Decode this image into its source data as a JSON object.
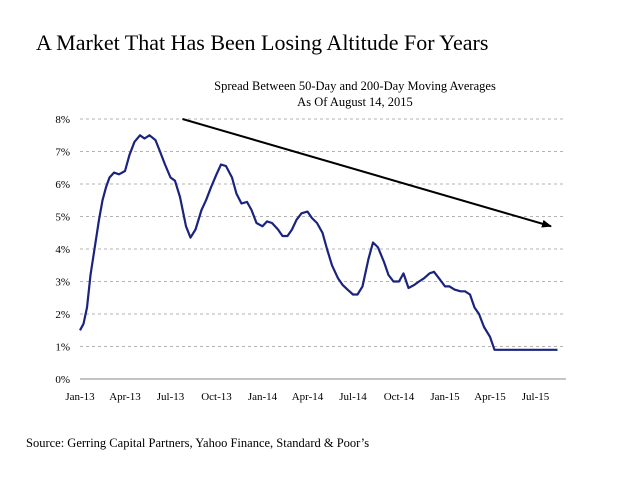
{
  "headline": "A Market That Has Been Losing Altitude For Years",
  "source": "Source: Gerring Capital Partners, Yahoo Finance, Standard & Poor’s",
  "chart_data": {
    "type": "line",
    "title": "Spread Between 50-Day and 200-Day Moving Averages",
    "subtitle": "As Of August 14, 2015",
    "xlabel": "",
    "ylabel": "",
    "ylim": [
      0,
      8
    ],
    "y_ticks": [
      "0%",
      "1%",
      "2%",
      "3%",
      "4%",
      "5%",
      "6%",
      "7%",
      "8%"
    ],
    "x_ticks": [
      "Jan-13",
      "Apr-13",
      "Jul-13",
      "Oct-13",
      "Jan-14",
      "Apr-14",
      "Jul-14",
      "Oct-14",
      "Jan-15",
      "Apr-15",
      "Jul-15"
    ],
    "xlim": [
      "2013-01-01",
      "2015-08-31"
    ],
    "grid": "horizontal dashed",
    "line_color": "#1a237e",
    "arrow_color": "#000000",
    "trend_arrow": {
      "from": {
        "x": "2013-07-25",
        "y": 8.0
      },
      "to": {
        "x": "2015-08-01",
        "y": 4.7
      }
    },
    "series": [
      {
        "x": [
          "2013-01-01",
          "2013-01-08",
          "2013-01-15",
          "2013-01-22",
          "2013-02-01",
          "2013-02-08",
          "2013-02-15",
          "2013-02-22",
          "2013-03-01",
          "2013-03-10",
          "2013-03-20",
          "2013-04-01",
          "2013-04-10",
          "2013-04-20",
          "2013-05-01",
          "2013-05-10",
          "2013-05-20",
          "2013-06-01",
          "2013-06-10",
          "2013-06-20",
          "2013-07-01",
          "2013-07-10",
          "2013-07-20",
          "2013-08-01",
          "2013-08-10",
          "2013-08-20",
          "2013-09-01",
          "2013-09-10",
          "2013-09-20",
          "2013-10-01",
          "2013-10-10",
          "2013-10-20",
          "2013-11-01",
          "2013-11-10",
          "2013-11-20",
          "2013-12-01",
          "2013-12-10",
          "2013-12-20",
          "2014-01-01",
          "2014-01-10",
          "2014-01-20",
          "2014-02-01",
          "2014-02-10",
          "2014-02-20",
          "2014-03-01",
          "2014-03-10",
          "2014-03-20",
          "2014-04-01",
          "2014-04-10",
          "2014-04-20",
          "2014-05-01",
          "2014-05-10",
          "2014-05-20",
          "2014-06-01",
          "2014-06-10",
          "2014-06-20",
          "2014-07-01",
          "2014-07-10",
          "2014-07-20",
          "2014-08-01",
          "2014-08-10",
          "2014-08-20",
          "2014-09-01",
          "2014-09-10",
          "2014-09-20",
          "2014-10-01",
          "2014-10-10",
          "2014-10-20",
          "2014-11-01",
          "2014-11-10",
          "2014-11-20",
          "2014-12-01",
          "2014-12-10",
          "2014-12-20",
          "2015-01-01",
          "2015-01-10",
          "2015-01-20",
          "2015-02-01",
          "2015-02-10",
          "2015-02-20",
          "2015-03-01",
          "2015-03-10",
          "2015-03-20",
          "2015-04-01",
          "2015-04-10",
          "2015-04-20",
          "2015-05-01",
          "2015-05-10",
          "2015-05-20",
          "2015-06-01",
          "2015-06-10",
          "2015-06-20",
          "2015-07-01",
          "2015-07-10",
          "2015-07-20",
          "2015-08-01",
          "2015-08-10",
          "2015-08-14"
        ],
        "y": [
          1.5,
          1.7,
          2.2,
          3.2,
          4.2,
          4.9,
          5.5,
          5.9,
          6.2,
          6.35,
          6.3,
          6.4,
          6.9,
          7.3,
          7.5,
          7.4,
          7.5,
          7.35,
          7.0,
          6.6,
          6.2,
          6.1,
          5.6,
          4.7,
          4.35,
          4.6,
          5.2,
          5.5,
          5.9,
          6.3,
          6.6,
          6.55,
          6.2,
          5.7,
          5.4,
          5.45,
          5.2,
          4.8,
          4.7,
          4.85,
          4.8,
          4.6,
          4.4,
          4.4,
          4.6,
          4.9,
          5.1,
          5.15,
          4.95,
          4.8,
          4.5,
          4.0,
          3.5,
          3.1,
          2.9,
          2.75,
          2.6,
          2.6,
          2.85,
          3.7,
          4.2,
          4.05,
          3.6,
          3.2,
          3.0,
          3.0,
          3.25,
          2.8,
          2.9,
          3.0,
          3.1,
          3.25,
          3.3,
          3.1,
          2.85,
          2.85,
          2.75,
          2.7,
          2.7,
          2.6,
          2.2,
          2.0,
          1.6,
          1.3,
          0.9,
          0.9,
          0.9,
          0.9,
          0.9,
          0.9,
          0.9,
          0.9,
          0.9,
          0.9,
          0.9,
          0.9,
          0.9,
          0.9
        ]
      }
    ]
  }
}
